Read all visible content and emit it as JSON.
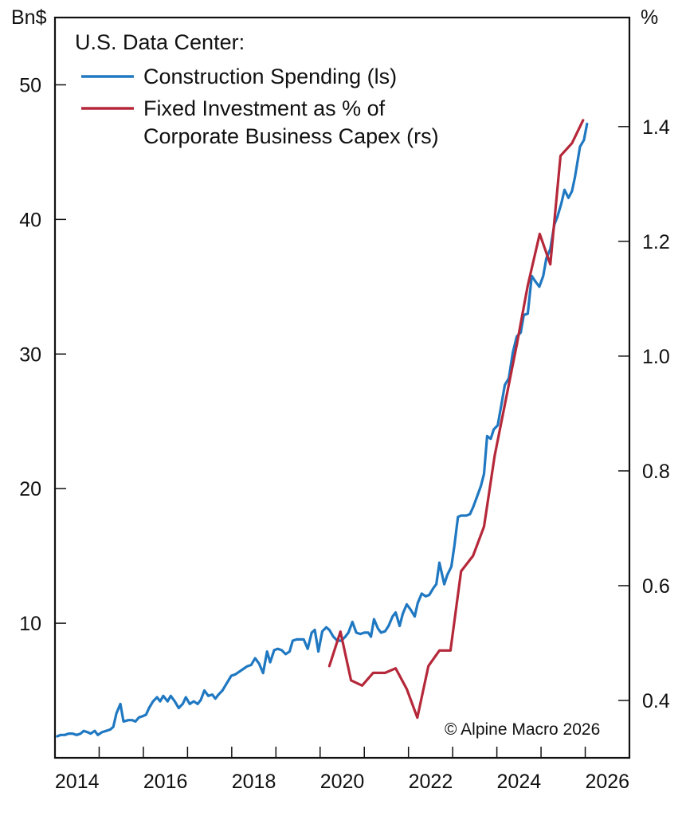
{
  "chart_data": {
    "type": "line",
    "title": "U.S. Data Center:",
    "ylabel_left": "Bn$",
    "ylabel_right": "%",
    "xlabel": "",
    "xlim": [
      2014,
      2027
    ],
    "ylim_left": [
      0,
      55
    ],
    "ylim_right": [
      0.3,
      1.59
    ],
    "grid": false,
    "legend_position": "top-left",
    "x_ticks": [
      2014,
      2016,
      2018,
      2020,
      2022,
      2024,
      2026
    ],
    "x_tick_labels": [
      "2014",
      "2016",
      "2018",
      "2020",
      "2022",
      "2024",
      "2026"
    ],
    "y_left_ticks": [
      10,
      20,
      30,
      40,
      50
    ],
    "y_left_tick_labels": [
      "10",
      "20",
      "30",
      "40",
      "50"
    ],
    "y_right_ticks": [
      0.4,
      0.6,
      0.8,
      1.0,
      1.2,
      1.4
    ],
    "y_right_tick_labels": [
      "0.4",
      "0.6",
      "0.8",
      "1.0",
      "1.2",
      "1.4"
    ],
    "annotation": "© Alpine Macro 2026",
    "series": [
      {
        "name": "Construction Spending (ls)",
        "axis": "left",
        "color": "#1f78c1",
        "x": [
          2014.05,
          2014.13,
          2014.22,
          2014.31,
          2014.4,
          2014.49,
          2014.58,
          2014.65,
          2014.74,
          2014.81,
          2014.9,
          2014.97,
          2015.06,
          2015.16,
          2015.25,
          2015.32,
          2015.39,
          2015.48,
          2015.55,
          2015.66,
          2015.75,
          2015.82,
          2015.9,
          2015.99,
          2016.06,
          2016.13,
          2016.22,
          2016.31,
          2016.38,
          2016.45,
          2016.55,
          2016.62,
          2016.71,
          2016.8,
          2016.89,
          2016.96,
          2017.05,
          2017.14,
          2017.23,
          2017.3,
          2017.38,
          2017.47,
          2017.56,
          2017.63,
          2017.7,
          2017.79,
          2017.88,
          2017.99,
          2018.08,
          2018.17,
          2018.26,
          2018.35,
          2018.44,
          2018.53,
          2018.62,
          2018.71,
          2018.8,
          2018.87,
          2018.96,
          2019.04,
          2019.13,
          2019.22,
          2019.31,
          2019.38,
          2019.47,
          2019.56,
          2019.63,
          2019.72,
          2019.81,
          2019.88,
          2019.96,
          2020.05,
          2020.14,
          2020.21,
          2020.3,
          2020.39,
          2020.48,
          2020.57,
          2020.64,
          2020.73,
          2020.82,
          2020.91,
          2021.0,
          2021.09,
          2021.15,
          2021.22,
          2021.31,
          2021.38,
          2021.47,
          2021.55,
          2021.64,
          2021.71,
          2021.8,
          2021.87,
          2021.96,
          2022.05,
          2022.14,
          2022.21,
          2022.3,
          2022.39,
          2022.47,
          2022.56,
          2022.63,
          2022.7,
          2022.81,
          2022.88,
          2022.97,
          2023.04,
          2023.12,
          2023.19,
          2023.31,
          2023.39,
          2023.46,
          2023.55,
          2023.64,
          2023.71,
          2023.78,
          2023.86,
          2023.93,
          2024.02,
          2024.09,
          2024.18,
          2024.27,
          2024.36,
          2024.45,
          2024.54,
          2024.61,
          2024.7,
          2024.79,
          2024.87,
          2024.96,
          2025.05,
          2025.12,
          2025.21,
          2025.3,
          2025.37,
          2025.46,
          2025.53,
          2025.62,
          2025.7,
          2025.77,
          2025.84,
          2025.88,
          2025.97,
          2026.04
        ],
        "values": [
          1.6,
          1.7,
          1.7,
          1.8,
          1.8,
          1.7,
          1.8,
          2.0,
          1.9,
          1.8,
          2.0,
          1.7,
          1.9,
          2.0,
          2.1,
          2.3,
          3.3,
          4.0,
          2.7,
          2.8,
          2.8,
          2.7,
          3.0,
          3.1,
          3.2,
          3.7,
          4.2,
          4.5,
          4.2,
          4.6,
          4.2,
          4.6,
          4.2,
          3.7,
          4.0,
          4.5,
          4.0,
          4.2,
          4.0,
          4.3,
          5.0,
          4.6,
          4.7,
          4.4,
          4.7,
          5.0,
          5.5,
          6.1,
          6.2,
          6.4,
          6.6,
          6.8,
          6.9,
          7.4,
          7.0,
          6.3,
          7.9,
          7.1,
          8.0,
          8.1,
          8.0,
          7.7,
          7.9,
          8.7,
          8.8,
          8.8,
          8.8,
          8.1,
          9.3,
          9.5,
          7.9,
          9.4,
          9.7,
          9.5,
          9.0,
          8.7,
          8.7,
          9.0,
          9.3,
          10.1,
          9.3,
          9.2,
          9.3,
          9.3,
          9.0,
          10.3,
          9.6,
          9.3,
          9.4,
          9.8,
          10.5,
          10.8,
          9.8,
          10.7,
          11.4,
          11.0,
          10.5,
          11.5,
          12.2,
          12.0,
          12.1,
          12.6,
          12.9,
          14.5,
          12.9,
          13.6,
          14.2,
          15.8,
          17.9,
          18.0,
          18.0,
          18.1,
          18.6,
          19.4,
          20.2,
          21.1,
          23.9,
          23.7,
          24.4,
          24.7,
          26.0,
          27.7,
          28.2,
          30.1,
          31.3,
          31.6,
          32.9,
          33.0,
          35.8,
          35.4,
          35.0,
          35.8,
          37.1,
          37.8,
          39.6,
          40.2,
          41.2,
          42.2,
          41.6,
          42.1,
          43.2,
          44.6,
          45.4,
          45.9,
          47.1
        ]
      },
      {
        "name": "Fixed Investment as % of Corporate Business Capex (rs)",
        "legend_lines": [
          "Fixed Investment as % of",
          "Corporate Business Capex (rs)"
        ],
        "axis": "right",
        "color": "#b5283a",
        "x": [
          2020.21,
          2020.46,
          2020.7,
          2020.95,
          2021.2,
          2021.47,
          2021.71,
          2021.96,
          2022.2,
          2022.45,
          2022.7,
          2022.95,
          2023.19,
          2023.46,
          2023.71,
          2023.95,
          2024.2,
          2024.45,
          2024.7,
          2024.97,
          2025.21,
          2025.44,
          2025.7,
          2025.95
        ],
        "values": [
          0.46,
          0.52,
          0.435,
          0.426,
          0.448,
          0.448,
          0.456,
          0.42,
          0.37,
          0.46,
          0.487,
          0.487,
          0.625,
          0.652,
          0.703,
          0.826,
          0.923,
          1.02,
          1.123,
          1.213,
          1.16,
          1.349,
          1.371,
          1.411
        ]
      }
    ]
  }
}
